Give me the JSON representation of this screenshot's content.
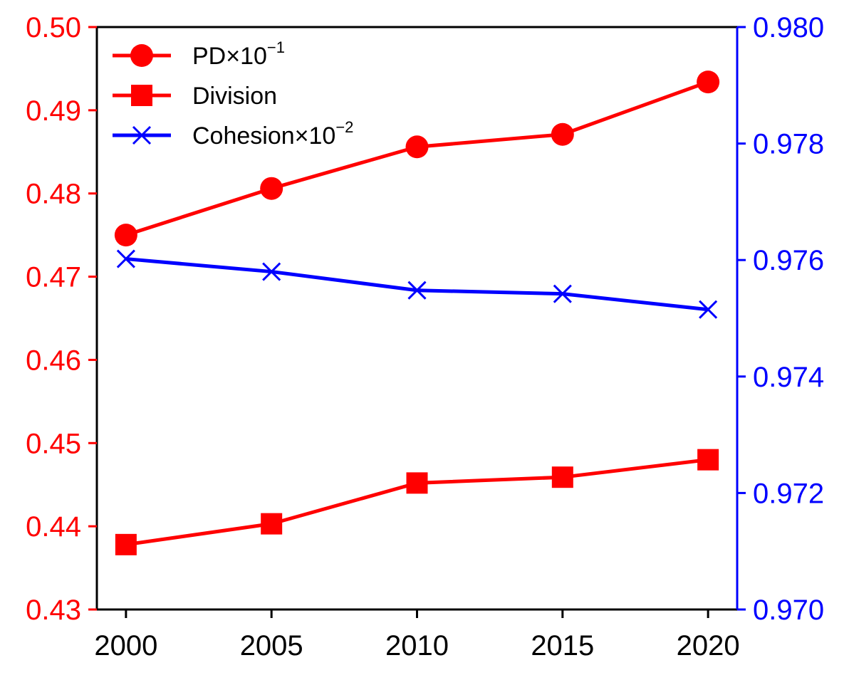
{
  "chart_data": {
    "type": "line",
    "x": [
      2000,
      2005,
      2010,
      2015,
      2020
    ],
    "xticks": [
      "2000",
      "2005",
      "2010",
      "2015",
      "2020"
    ],
    "xlim": [
      1999,
      2021
    ],
    "left_axis": {
      "ylim": [
        0.43,
        0.5
      ],
      "ticks": [
        "0.43",
        "0.44",
        "0.45",
        "0.46",
        "0.47",
        "0.48",
        "0.49",
        "0.50"
      ],
      "color": "#ff0000"
    },
    "right_axis": {
      "ylim": [
        0.97,
        0.98
      ],
      "ticks": [
        "0.970",
        "0.972",
        "0.974",
        "0.976",
        "0.978",
        "0.980"
      ],
      "color": "#0000ff"
    },
    "grid": false,
    "legend_position": "top-left",
    "series": [
      {
        "name": "PD×10",
        "exponent": "−1",
        "axis": "left",
        "marker": "circle",
        "color": "#ff0000",
        "values": [
          0.475,
          0.4806,
          0.4856,
          0.4871,
          0.4934
        ]
      },
      {
        "name": "Division",
        "exponent": "",
        "axis": "left",
        "marker": "square",
        "color": "#ff0000",
        "values": [
          0.4378,
          0.4403,
          0.4452,
          0.4459,
          0.448
        ]
      },
      {
        "name": "Cohesion×10",
        "exponent": "−2",
        "axis": "right",
        "marker": "x",
        "color": "#0000ff",
        "values": [
          0.97602,
          0.9758,
          0.97548,
          0.97542,
          0.97515
        ]
      }
    ]
  }
}
